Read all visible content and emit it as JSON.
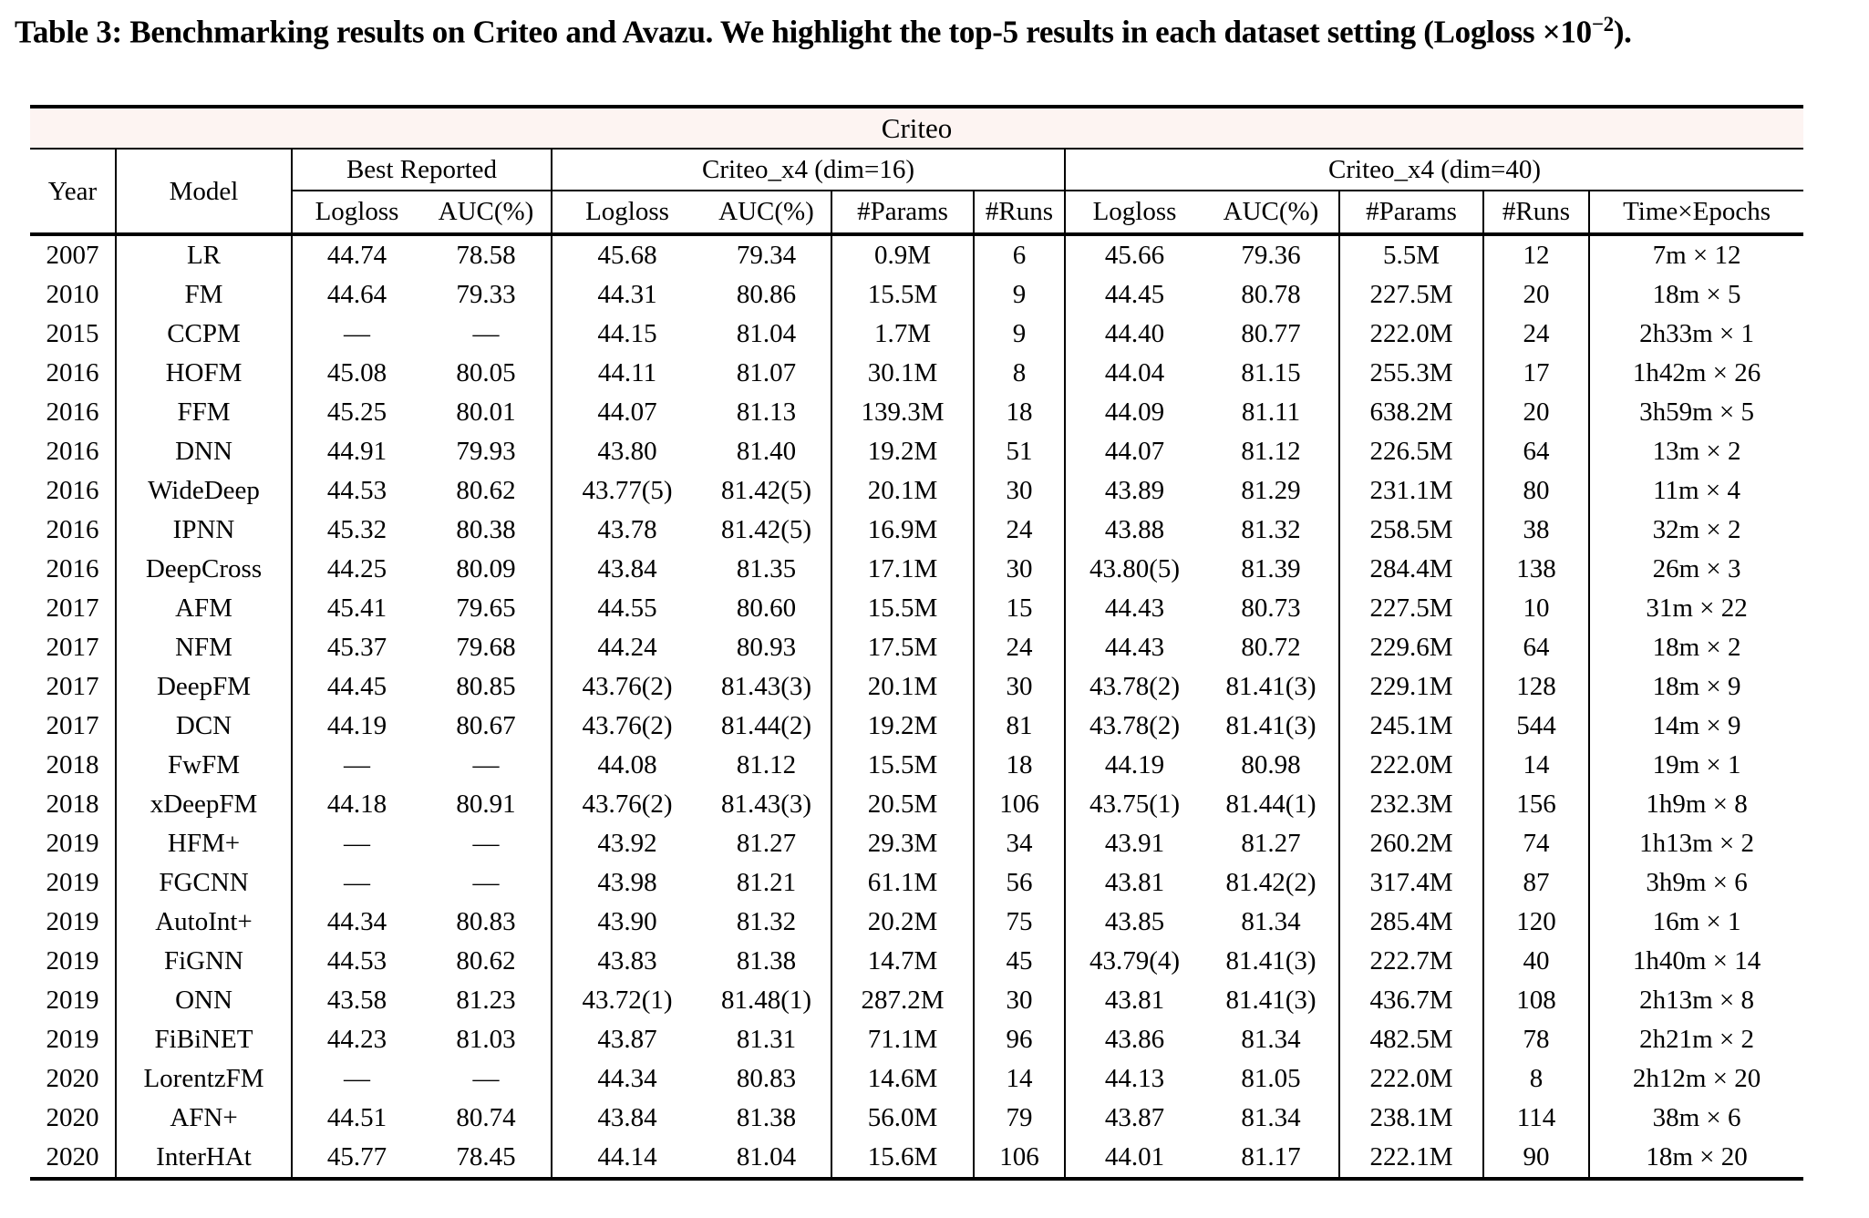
{
  "caption": {
    "before_sup": "Table 3: Benchmarking results on Criteo and Avazu. We highlight the top-5 results in each dataset setting (Logloss ×10",
    "sup": "−2",
    "after_sup": ")."
  },
  "colors": {
    "banner_bg": "#fdf4f2",
    "border": "#000000",
    "text": "#000000",
    "page_bg": "#ffffff"
  },
  "table": {
    "dataset_banner": "Criteo",
    "header": {
      "year": "Year",
      "model": "Model",
      "groups": [
        {
          "label": "Best Reported",
          "cols": [
            "Logloss",
            "AUC(%)"
          ]
        },
        {
          "label": "Criteo_x4 (dim=16)",
          "cols": [
            "Logloss",
            "AUC(%)",
            "#Params",
            "#Runs"
          ]
        },
        {
          "label": "Criteo_x4 (dim=40)",
          "cols": [
            "Logloss",
            "AUC(%)",
            "#Params",
            "#Runs",
            "Time×Epochs"
          ]
        }
      ]
    },
    "rows": [
      {
        "year": "2007",
        "model": "LR",
        "cells": [
          "44.74",
          "78.58",
          "45.68",
          "79.34",
          "0.9M",
          "6",
          "45.66",
          "79.36",
          "5.5M",
          "12",
          "7m × 12"
        ],
        "bold": []
      },
      {
        "year": "2010",
        "model": "FM",
        "cells": [
          "44.64",
          "79.33",
          "44.31",
          "80.86",
          "15.5M",
          "9",
          "44.45",
          "80.78",
          "227.5M",
          "20",
          "18m × 5"
        ],
        "bold": []
      },
      {
        "year": "2015",
        "model": "CCPM",
        "cells": [
          "—",
          "—",
          "44.15",
          "81.04",
          "1.7M",
          "9",
          "44.40",
          "80.77",
          "222.0M",
          "24",
          "2h33m × 1"
        ],
        "bold": []
      },
      {
        "year": "2016",
        "model": "HOFM",
        "cells": [
          "45.08",
          "80.05",
          "44.11",
          "81.07",
          "30.1M",
          "8",
          "44.04",
          "81.15",
          "255.3M",
          "17",
          "1h42m × 26"
        ],
        "bold": []
      },
      {
        "year": "2016",
        "model": "FFM",
        "cells": [
          "45.25",
          "80.01",
          "44.07",
          "81.13",
          "139.3M",
          "18",
          "44.09",
          "81.11",
          "638.2M",
          "20",
          "3h59m × 5"
        ],
        "bold": []
      },
      {
        "year": "2016",
        "model": "DNN",
        "cells": [
          "44.91",
          "79.93",
          "43.80",
          "81.40",
          "19.2M",
          "51",
          "44.07",
          "81.12",
          "226.5M",
          "64",
          "13m × 2"
        ],
        "bold": []
      },
      {
        "year": "2016",
        "model": "WideDeep",
        "cells": [
          "44.53",
          "80.62",
          "43.77(5)",
          "81.42(5)",
          "20.1M",
          "30",
          "43.89",
          "81.29",
          "231.1M",
          "80",
          "11m × 4"
        ],
        "bold": [
          2,
          3
        ]
      },
      {
        "year": "2016",
        "model": "IPNN",
        "cells": [
          "45.32",
          "80.38",
          "43.78",
          "81.42(5)",
          "16.9M",
          "24",
          "43.88",
          "81.32",
          "258.5M",
          "38",
          "32m × 2"
        ],
        "bold": [
          3
        ]
      },
      {
        "year": "2016",
        "model": "DeepCross",
        "cells": [
          "44.25",
          "80.09",
          "43.84",
          "81.35",
          "17.1M",
          "30",
          "43.80(5)",
          "81.39",
          "284.4M",
          "138",
          "26m × 3"
        ],
        "bold": [
          6
        ]
      },
      {
        "year": "2017",
        "model": "AFM",
        "cells": [
          "45.41",
          "79.65",
          "44.55",
          "80.60",
          "15.5M",
          "15",
          "44.43",
          "80.73",
          "227.5M",
          "10",
          "31m × 22"
        ],
        "bold": []
      },
      {
        "year": "2017",
        "model": "NFM",
        "cells": [
          "45.37",
          "79.68",
          "44.24",
          "80.93",
          "17.5M",
          "24",
          "44.43",
          "80.72",
          "229.6M",
          "64",
          "18m × 2"
        ],
        "bold": []
      },
      {
        "year": "2017",
        "model": "DeepFM",
        "cells": [
          "44.45",
          "80.85",
          "43.76(2)",
          "81.43(3)",
          "20.1M",
          "30",
          "43.78(2)",
          "81.41(3)",
          "229.1M",
          "128",
          "18m × 9"
        ],
        "bold": [
          2,
          3,
          6,
          7
        ]
      },
      {
        "year": "2017",
        "model": "DCN",
        "cells": [
          "44.19",
          "80.67",
          "43.76(2)",
          "81.44(2)",
          "19.2M",
          "81",
          "43.78(2)",
          "81.41(3)",
          "245.1M",
          "544",
          "14m × 9"
        ],
        "bold": [
          2,
          3,
          6,
          7
        ]
      },
      {
        "year": "2018",
        "model": "FwFM",
        "cells": [
          "—",
          "—",
          "44.08",
          "81.12",
          "15.5M",
          "18",
          "44.19",
          "80.98",
          "222.0M",
          "14",
          "19m × 1"
        ],
        "bold": []
      },
      {
        "year": "2018",
        "model": "xDeepFM",
        "cells": [
          "44.18",
          "80.91",
          "43.76(2)",
          "81.43(3)",
          "20.5M",
          "106",
          "43.75(1)",
          "81.44(1)",
          "232.3M",
          "156",
          "1h9m × 8"
        ],
        "bold": [
          2,
          3,
          6,
          7
        ]
      },
      {
        "year": "2019",
        "model": "HFM+",
        "cells": [
          "—",
          "—",
          "43.92",
          "81.27",
          "29.3M",
          "34",
          "43.91",
          "81.27",
          "260.2M",
          "74",
          "1h13m × 2"
        ],
        "bold": []
      },
      {
        "year": "2019",
        "model": "FGCNN",
        "cells": [
          "—",
          "—",
          "43.98",
          "81.21",
          "61.1M",
          "56",
          "43.81",
          "81.42(2)",
          "317.4M",
          "87",
          "3h9m × 6"
        ],
        "bold": [
          7
        ]
      },
      {
        "year": "2019",
        "model": "AutoInt+",
        "cells": [
          "44.34",
          "80.83",
          "43.90",
          "81.32",
          "20.2M",
          "75",
          "43.85",
          "81.34",
          "285.4M",
          "120",
          "16m × 1"
        ],
        "bold": []
      },
      {
        "year": "2019",
        "model": "FiGNN",
        "cells": [
          "44.53",
          "80.62",
          "43.83",
          "81.38",
          "14.7M",
          "45",
          "43.79(4)",
          "81.41(3)",
          "222.7M",
          "40",
          "1h40m × 14"
        ],
        "bold": [
          6,
          7
        ]
      },
      {
        "year": "2019",
        "model": "ONN",
        "cells": [
          "43.58",
          "81.23",
          "43.72(1)",
          "81.48(1)",
          "287.2M",
          "30",
          "43.81",
          "81.41(3)",
          "436.7M",
          "108",
          "2h13m × 8"
        ],
        "bold": [
          2,
          3,
          7
        ]
      },
      {
        "year": "2019",
        "model": "FiBiNET",
        "cells": [
          "44.23",
          "81.03",
          "43.87",
          "81.31",
          "71.1M",
          "96",
          "43.86",
          "81.34",
          "482.5M",
          "78",
          "2h21m × 2"
        ],
        "bold": []
      },
      {
        "year": "2020",
        "model": "LorentzFM",
        "cells": [
          "—",
          "—",
          "44.34",
          "80.83",
          "14.6M",
          "14",
          "44.13",
          "81.05",
          "222.0M",
          "8",
          "2h12m × 20"
        ],
        "bold": []
      },
      {
        "year": "2020",
        "model": "AFN+",
        "cells": [
          "44.51",
          "80.74",
          "43.84",
          "81.38",
          "56.0M",
          "79",
          "43.87",
          "81.34",
          "238.1M",
          "114",
          "38m × 6"
        ],
        "bold": []
      },
      {
        "year": "2020",
        "model": "InterHAt",
        "cells": [
          "45.77",
          "78.45",
          "44.14",
          "81.04",
          "15.6M",
          "106",
          "44.01",
          "81.17",
          "222.1M",
          "90",
          "18m × 20"
        ],
        "bold": []
      }
    ]
  }
}
